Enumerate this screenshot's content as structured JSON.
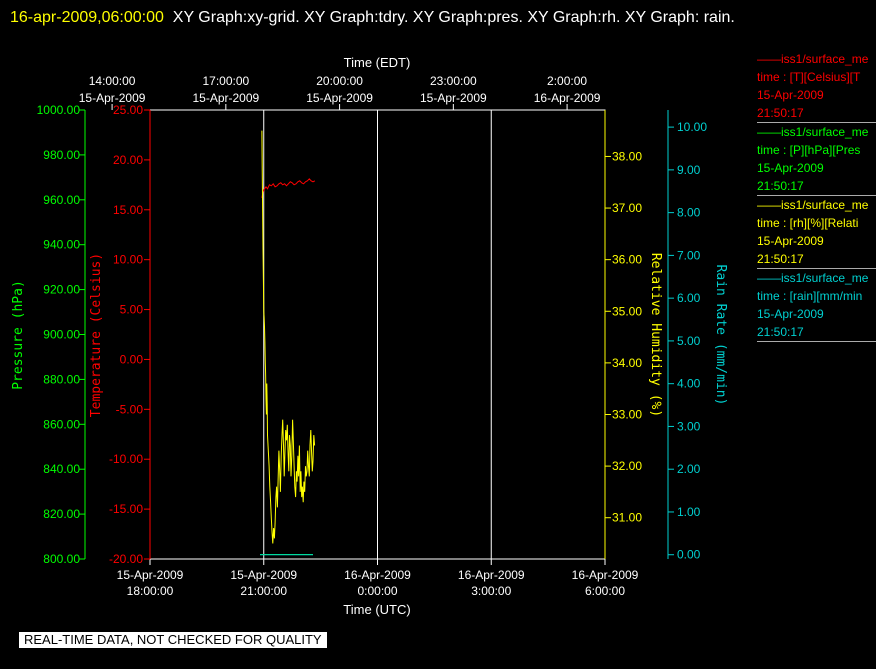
{
  "title": {
    "timestamp": "16-apr-2009,06:00:00",
    "rest": "XY Graph:xy-grid.  XY Graph:tdry.  XY Graph:pres.  XY Graph:rh.  XY Graph: rain."
  },
  "colors": {
    "temperature": "#ff0000",
    "pressure": "#00ff00",
    "humidity": "#ffff00",
    "rain": "#00d0d0",
    "grid": "#ffffff",
    "background": "#000000"
  },
  "top_axis": {
    "label": "Time (EDT)",
    "ticks": [
      {
        "time": "14:00:00",
        "date": "15-Apr-2009"
      },
      {
        "time": "17:00:00",
        "date": "15-Apr-2009"
      },
      {
        "time": "20:00:00",
        "date": "15-Apr-2009"
      },
      {
        "time": "23:00:00",
        "date": "15-Apr-2009"
      },
      {
        "time": "2:00:00",
        "date": "16-Apr-2009"
      }
    ]
  },
  "bottom_axis": {
    "label": "Time (UTC)",
    "ticks": [
      {
        "date": "15-Apr-2009",
        "time": "18:00:00"
      },
      {
        "date": "15-Apr-2009",
        "time": "21:00:00"
      },
      {
        "date": "16-Apr-2009",
        "time": "0:00:00"
      },
      {
        "date": "16-Apr-2009",
        "time": "3:00:00"
      },
      {
        "date": "16-Apr-2009",
        "time": "6:00:00"
      }
    ]
  },
  "chart_data": {
    "type": "line",
    "x_unit": "hours UTC (18.0 = 15-Apr-2009 18:00, 30.0 = 16-Apr-2009 6:00)",
    "xlim": [
      18.0,
      30.0
    ],
    "grid": true,
    "axes": {
      "pressure": {
        "label": "Pressure (hPa)",
        "ylim": [
          800,
          1000
        ],
        "ticks": [
          "800.00",
          "820.00",
          "840.00",
          "860.00",
          "880.00",
          "900.00",
          "920.00",
          "940.00",
          "960.00",
          "980.00",
          "1000.00"
        ]
      },
      "temperature": {
        "label": "Temperature (Celsius)",
        "ylim": [
          -20,
          25
        ],
        "ticks": [
          "-20.00",
          "-15.00",
          "-10.00",
          "-5.00",
          "0.00",
          "5.00",
          "10.00",
          "15.00",
          "20.00",
          "25.00"
        ]
      },
      "humidity": {
        "label": "Relative Humidity (%)",
        "ylim": [
          30.2,
          38.9
        ],
        "ticks": [
          "31.00",
          "32.00",
          "33.00",
          "34.00",
          "35.00",
          "36.00",
          "37.00",
          "38.00"
        ]
      },
      "rain": {
        "label": "Rain Rate (mm/min)",
        "ylim": [
          -0.1,
          10.4
        ],
        "ticks": [
          "0.00",
          "1.00",
          "2.00",
          "3.00",
          "4.00",
          "5.00",
          "6.00",
          "7.00",
          "8.00",
          "9.00",
          "10.00"
        ]
      }
    },
    "series": [
      {
        "name": "temperature",
        "axis": "temperature",
        "x": [
          20.95,
          20.98,
          21.02,
          21.06,
          21.1,
          21.15,
          21.2,
          21.25,
          21.3,
          21.35,
          21.4,
          21.45,
          21.5,
          21.55,
          21.6,
          21.65,
          21.7,
          21.75,
          21.8,
          21.85,
          21.9,
          21.95,
          22.0,
          22.05,
          22.1,
          22.15,
          22.2,
          22.25,
          22.3,
          22.35
        ],
        "y": [
          16.2,
          16.8,
          17.1,
          17.3,
          17.1,
          17.5,
          17.4,
          17.6,
          17.3,
          17.4,
          17.6,
          17.7,
          17.5,
          17.6,
          17.4,
          17.6,
          17.8,
          17.7,
          17.5,
          17.6,
          17.8,
          17.9,
          17.7,
          17.6,
          17.8,
          17.9,
          18.1,
          17.9,
          17.8,
          17.9
        ]
      },
      {
        "name": "humidity",
        "axis": "humidity",
        "x": [
          20.95,
          20.96,
          20.97,
          20.98,
          20.99,
          21.0,
          21.01,
          21.02,
          21.03,
          21.04,
          21.05,
          21.06,
          21.07,
          21.08,
          21.09,
          21.1,
          21.12,
          21.14,
          21.16,
          21.18,
          21.2,
          21.22,
          21.24,
          21.26,
          21.28,
          21.3,
          21.32,
          21.34,
          21.36,
          21.38,
          21.4,
          21.42,
          21.44,
          21.46,
          21.48,
          21.5,
          21.52,
          21.54,
          21.56,
          21.58,
          21.6,
          21.62,
          21.64,
          21.66,
          21.68,
          21.7,
          21.72,
          21.74,
          21.76,
          21.78,
          21.8,
          21.82,
          21.84,
          21.86,
          21.88,
          21.9,
          21.92,
          21.94,
          21.96,
          21.98,
          22.0,
          22.02,
          22.04,
          22.06,
          22.08,
          22.1,
          22.12,
          22.14,
          22.16,
          22.18,
          22.2,
          22.22,
          22.24,
          22.26,
          22.28,
          22.3,
          22.32,
          22.34
        ],
        "y": [
          38.5,
          37.8,
          37.0,
          36.2,
          35.6,
          35.0,
          34.9,
          34.7,
          34.4,
          34.0,
          33.8,
          33.3,
          33.0,
          33.6,
          33.2,
          32.6,
          32.3,
          32.0,
          31.6,
          31.3,
          31.0,
          30.7,
          30.5,
          30.8,
          30.6,
          30.9,
          31.4,
          31.6,
          31.2,
          31.8,
          32.3,
          31.9,
          31.5,
          32.2,
          32.6,
          32.9,
          32.4,
          31.8,
          32.3,
          32.7,
          32.5,
          32.8,
          32.3,
          31.9,
          32.6,
          32.4,
          31.8,
          32.2,
          32.9,
          32.5,
          32.0,
          31.6,
          31.4,
          31.9,
          31.7,
          32.2,
          31.8,
          32.4,
          31.5,
          31.9,
          31.4,
          31.6,
          31.3,
          31.7,
          31.5,
          32.0,
          31.8,
          31.9,
          32.3,
          32.0,
          31.8,
          32.4,
          32.7,
          32.3,
          31.9,
          32.1,
          32.6,
          32.4
        ]
      },
      {
        "name": "pressure",
        "axis": "pressure",
        "x": [
          20.9,
          22.3
        ],
        "y": [
          802,
          802
        ]
      },
      {
        "name": "rain",
        "axis": "rain",
        "x": [
          20.9,
          22.3
        ],
        "y": [
          0.0,
          0.0
        ]
      }
    ]
  },
  "legend": [
    {
      "name": "iss1/surface_me",
      "line1": "time : [T][Celsius][T",
      "date": "15-Apr-2009",
      "time": "21:50:17"
    },
    {
      "name": "iss1/surface_me",
      "line1": "time : [P][hPa][Pres",
      "date": "15-Apr-2009",
      "time": "21:50:17"
    },
    {
      "name": "iss1/surface_me",
      "line1": "time : [rh][%][Relati",
      "date": "15-Apr-2009",
      "time": "21:50:17"
    },
    {
      "name": "iss1/surface_me",
      "line1": "time : [rain][mm/min",
      "date": "15-Apr-2009",
      "time": "21:50:17"
    }
  ],
  "banner": "REAL-TIME DATA, NOT CHECKED FOR QUALITY"
}
